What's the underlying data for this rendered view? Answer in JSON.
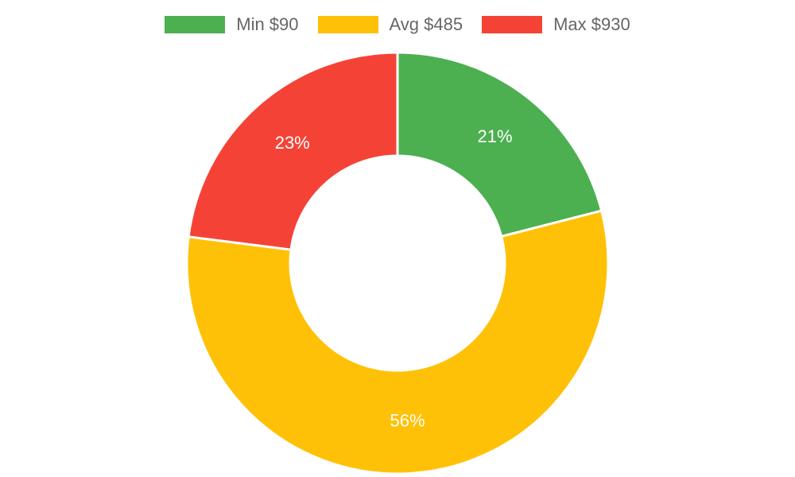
{
  "chart_data": {
    "type": "pie",
    "variant": "doughnut",
    "legend_position": "top",
    "categories": [
      "Min $90",
      "Avg $485",
      "Max $930"
    ],
    "values": [
      21,
      56,
      23
    ],
    "labels": [
      "21%",
      "56%",
      "23%"
    ],
    "colors": [
      "#4CAF50",
      "#FFC107",
      "#F44336"
    ]
  }
}
